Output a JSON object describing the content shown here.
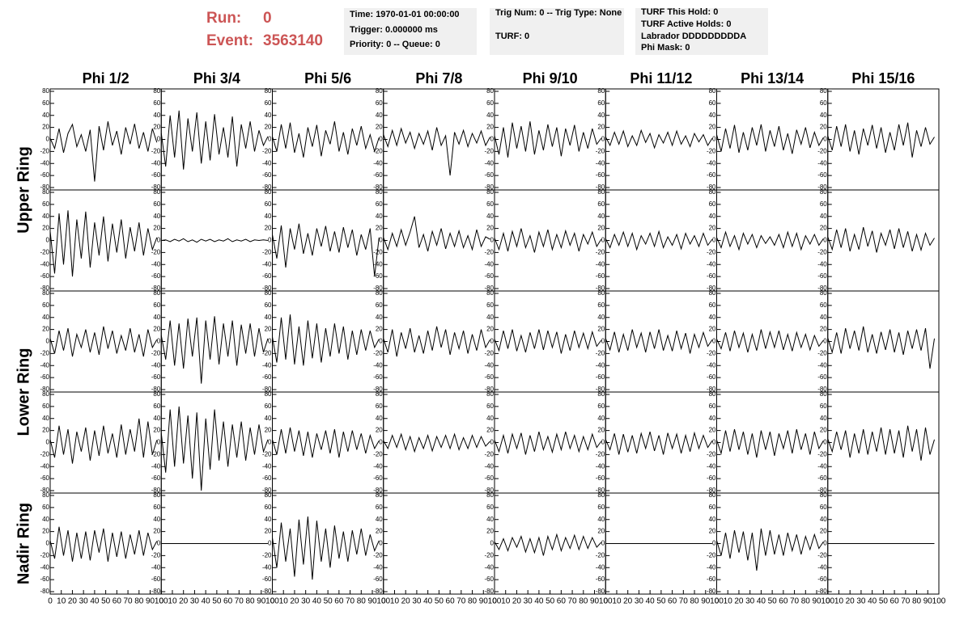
{
  "header": {
    "run_label": "Run:",
    "run": "0",
    "event_label": "Event:",
    "event": "3563140"
  },
  "info_boxes": [
    [
      "Time: 1970-01-01 00:00:00",
      "Trigger: 0.000000 ms",
      "Priority: 0 -- Queue: 0"
    ],
    [
      "Trig Num: 0 -- Trig Type: None",
      "TURF: 0"
    ],
    [
      "TURF This Hold: 0",
      "TURF Active Holds: 0",
      "Labrador DDDDDDDDDA",
      "Phi Mask: 0"
    ]
  ],
  "chart_data": {
    "type": "line",
    "color": "#000000",
    "columns": [
      "Phi 1/2",
      "Phi 3/4",
      "Phi 5/6",
      "Phi 7/8",
      "Phi 9/10",
      "Phi 11/12",
      "Phi 13/14",
      "Phi 15/16"
    ],
    "rows": [
      "Upper Ring",
      "Lower Ring",
      "Nadir Ring"
    ],
    "x": [
      0,
      4,
      8,
      12,
      16,
      20,
      24,
      28,
      32,
      36,
      40,
      44,
      48,
      52,
      56,
      60,
      64,
      68,
      72,
      76,
      80,
      84,
      88,
      92,
      96
    ],
    "xlim": [
      0,
      100
    ],
    "xticks": [
      0,
      10,
      20,
      30,
      40,
      50,
      60,
      70,
      80,
      90,
      100
    ],
    "ylim": [
      -80,
      80
    ],
    "yticks": [
      -80,
      -60,
      -40,
      -20,
      0,
      20,
      40,
      60,
      80
    ],
    "series": [
      {
        "values": [
          2,
          -15,
          18,
          -22,
          10,
          25,
          -12,
          8,
          -20,
          16,
          -70,
          22,
          -18,
          30,
          -10,
          14,
          -25,
          20,
          -8,
          26,
          -15,
          12,
          -20,
          18,
          -5
        ]
      },
      {
        "values": [
          10,
          -45,
          40,
          -30,
          48,
          -50,
          35,
          -20,
          45,
          -40,
          30,
          -35,
          42,
          -25,
          20,
          -30,
          38,
          -45,
          25,
          -15,
          30,
          -20,
          15,
          -10,
          5
        ]
      },
      {
        "values": [
          5,
          -20,
          25,
          -15,
          28,
          -22,
          10,
          -30,
          20,
          -12,
          24,
          -28,
          15,
          -8,
          30,
          -20,
          12,
          -25,
          18,
          -10,
          22,
          -15,
          8,
          -20,
          3
        ]
      },
      {
        "values": [
          8,
          -12,
          15,
          -10,
          18,
          -6,
          12,
          -15,
          10,
          -8,
          14,
          -18,
          20,
          -10,
          6,
          -60,
          12,
          -8,
          15,
          -12,
          10,
          -6,
          14,
          -10,
          4
        ]
      },
      {
        "values": [
          6,
          -25,
          20,
          -30,
          28,
          -15,
          22,
          -20,
          30,
          -25,
          15,
          -18,
          25,
          -12,
          20,
          -28,
          18,
          -10,
          24,
          -20,
          12,
          -15,
          18,
          -8,
          2
        ]
      },
      {
        "values": [
          4,
          -10,
          12,
          -8,
          14,
          -12,
          6,
          -10,
          15,
          -5,
          10,
          -14,
          8,
          -6,
          12,
          -10,
          14,
          -8,
          6,
          -12,
          10,
          -4,
          8,
          -10,
          2
        ]
      },
      {
        "values": [
          8,
          -20,
          18,
          -15,
          24,
          -22,
          12,
          -18,
          20,
          -10,
          25,
          -20,
          15,
          -12,
          22,
          -18,
          10,
          -24,
          16,
          -8,
          20,
          -14,
          12,
          -10,
          3
        ]
      },
      {
        "values": [
          6,
          -18,
          22,
          -12,
          25,
          -20,
          15,
          -25,
          18,
          -10,
          24,
          -15,
          20,
          -22,
          12,
          -18,
          25,
          -10,
          28,
          -30,
          15,
          -12,
          20,
          -8,
          4
        ]
      },
      {
        "values": [
          15,
          -55,
          45,
          -40,
          50,
          -60,
          35,
          -30,
          48,
          -45,
          30,
          -25,
          40,
          -35,
          28,
          -20,
          35,
          -30,
          22,
          -18,
          30,
          -25,
          20,
          -15,
          5
        ]
      },
      {
        "values": [
          0,
          1,
          -2,
          2,
          -1,
          3,
          -2,
          1,
          -3,
          2,
          -1,
          2,
          -2,
          1,
          -1,
          3,
          -2,
          1,
          -1,
          2,
          -2,
          1,
          0,
          1,
          0
        ]
      },
      {
        "values": [
          10,
          -30,
          25,
          -45,
          20,
          -15,
          28,
          -22,
          12,
          -25,
          20,
          -10,
          24,
          -18,
          15,
          -20,
          22,
          -12,
          18,
          -25,
          10,
          -15,
          20,
          -60,
          5
        ]
      },
      {
        "values": [
          5,
          -15,
          12,
          -10,
          18,
          -8,
          14,
          40,
          -12,
          10,
          -18,
          15,
          -8,
          20,
          -14,
          12,
          -10,
          16,
          -12,
          8,
          -15,
          18,
          -10,
          6,
          2
        ]
      },
      {
        "values": [
          4,
          -15,
          12,
          -18,
          15,
          -10,
          20,
          -12,
          8,
          -20,
          14,
          -10,
          18,
          -15,
          10,
          -12,
          16,
          -8,
          12,
          -18,
          10,
          -6,
          14,
          -10,
          2
        ]
      },
      {
        "values": [
          3,
          -12,
          10,
          -8,
          14,
          -10,
          12,
          -15,
          8,
          -6,
          12,
          -10,
          15,
          -12,
          6,
          -8,
          10,
          -14,
          12,
          -6,
          8,
          -10,
          12,
          -8,
          2
        ]
      },
      {
        "values": [
          5,
          -12,
          14,
          -10,
          8,
          -15,
          12,
          -6,
          10,
          -12,
          8,
          -5,
          6,
          -8,
          10,
          -12,
          14,
          -10,
          12,
          -15,
          8,
          -6,
          10,
          -8,
          3
        ]
      },
      {
        "values": [
          6,
          -15,
          18,
          -12,
          20,
          -18,
          10,
          -15,
          22,
          -10,
          16,
          -20,
          12,
          -8,
          18,
          -14,
          20,
          -12,
          15,
          -18,
          10,
          -16,
          12,
          -8,
          4
        ]
      },
      {
        "values": [
          5,
          -20,
          18,
          -15,
          22,
          -25,
          12,
          -10,
          20,
          -18,
          15,
          -22,
          25,
          -12,
          18,
          -20,
          10,
          -15,
          22,
          -18,
          12,
          -25,
          20,
          -10,
          3
        ]
      },
      {
        "values": [
          10,
          -30,
          35,
          -40,
          30,
          -45,
          38,
          -25,
          40,
          -70,
          35,
          -30,
          42,
          -38,
          30,
          -25,
          35,
          -40,
          28,
          -20,
          30,
          -25,
          22,
          -18,
          5
        ]
      },
      {
        "values": [
          8,
          -35,
          40,
          -30,
          45,
          -38,
          25,
          -40,
          35,
          -28,
          30,
          -35,
          22,
          -25,
          30,
          -20,
          25,
          -30,
          18,
          -22,
          20,
          -15,
          18,
          -10,
          4
        ]
      },
      {
        "values": [
          5,
          -18,
          20,
          -25,
          15,
          -12,
          22,
          -18,
          10,
          -20,
          18,
          -15,
          25,
          -10,
          20,
          -22,
          15,
          -12,
          18,
          -20,
          12,
          -15,
          20,
          -10,
          3
        ]
      },
      {
        "values": [
          4,
          -15,
          18,
          -12,
          20,
          -16,
          10,
          -18,
          15,
          -12,
          20,
          -14,
          18,
          -10,
          16,
          -20,
          12,
          -15,
          18,
          -10,
          14,
          -12,
          16,
          -8,
          2
        ]
      },
      {
        "values": [
          5,
          -14,
          16,
          -18,
          12,
          -15,
          20,
          -10,
          14,
          -18,
          16,
          -12,
          20,
          -15,
          10,
          -16,
          18,
          -12,
          14,
          -20,
          12,
          -10,
          15,
          -8,
          3
        ]
      },
      {
        "values": [
          4,
          -12,
          15,
          -16,
          18,
          -10,
          14,
          -18,
          12,
          -15,
          20,
          -12,
          16,
          -10,
          18,
          -14,
          12,
          -16,
          15,
          -10,
          12,
          -14,
          10,
          -8,
          2
        ]
      },
      {
        "values": [
          6,
          -18,
          15,
          -20,
          22,
          -12,
          18,
          -15,
          25,
          -18,
          12,
          -20,
          16,
          -14,
          20,
          -18,
          15,
          -22,
          18,
          -12,
          20,
          -15,
          22,
          -45,
          5
        ]
      },
      {
        "values": [
          5,
          -25,
          28,
          -20,
          22,
          -35,
          18,
          -15,
          25,
          -30,
          20,
          -22,
          28,
          -18,
          15,
          -25,
          30,
          -20,
          22,
          -15,
          40,
          -25,
          35,
          -20,
          4
        ]
      },
      {
        "values": [
          15,
          -50,
          55,
          -40,
          60,
          -35,
          45,
          -60,
          50,
          -80,
          40,
          -45,
          55,
          -30,
          35,
          -40,
          30,
          -25,
          35,
          -30,
          25,
          -20,
          30,
          -15,
          5
        ]
      },
      {
        "values": [
          5,
          -20,
          22,
          -18,
          25,
          -15,
          20,
          -22,
          18,
          -25,
          15,
          -12,
          20,
          -18,
          22,
          -25,
          18,
          -15,
          20,
          -12,
          15,
          -18,
          12,
          -10,
          3
        ]
      },
      {
        "values": [
          3,
          -10,
          12,
          -8,
          14,
          -12,
          10,
          -15,
          8,
          -10,
          12,
          -14,
          10,
          -8,
          12,
          -10,
          14,
          -12,
          8,
          -10,
          12,
          -8,
          10,
          -6,
          2
        ]
      },
      {
        "values": [
          4,
          -15,
          12,
          -18,
          14,
          -10,
          16,
          -20,
          12,
          -15,
          18,
          -12,
          10,
          -16,
          14,
          -12,
          18,
          -10,
          12,
          -15,
          10,
          -12,
          14,
          -8,
          2
        ]
      },
      {
        "values": [
          5,
          -12,
          15,
          -20,
          14,
          -16,
          12,
          -18,
          15,
          -10,
          18,
          -14,
          12,
          -20,
          16,
          -10,
          14,
          -18,
          12,
          -15,
          16,
          -10,
          12,
          -8,
          3
        ]
      },
      {
        "values": [
          4,
          -18,
          20,
          -15,
          22,
          -12,
          18,
          -20,
          15,
          -25,
          20,
          -12,
          18,
          -22,
          15,
          -10,
          20,
          -18,
          22,
          -12,
          15,
          -20,
          18,
          -10,
          3
        ]
      },
      {
        "values": [
          6,
          -15,
          18,
          -12,
          20,
          -25,
          15,
          -18,
          22,
          -20,
          18,
          -15,
          25,
          -20,
          22,
          -18,
          20,
          -25,
          28,
          -15,
          22,
          -30,
          25,
          -20,
          5
        ]
      },
      {
        "values": [
          5,
          -25,
          28,
          -20,
          22,
          -30,
          18,
          -25,
          20,
          -28,
          22,
          -15,
          25,
          -30,
          18,
          -22,
          20,
          -25,
          15,
          -18,
          22,
          -20,
          18,
          -10,
          4
        ]
      },
      {
        "values": [
          0,
          0,
          0,
          0,
          0,
          0,
          0,
          0,
          0,
          0,
          0,
          0,
          0,
          0,
          0,
          0,
          0,
          0,
          0,
          0,
          0,
          0,
          0,
          0,
          0
        ]
      },
      {
        "values": [
          10,
          -40,
          35,
          -30,
          25,
          -55,
          40,
          -35,
          45,
          -60,
          38,
          -30,
          25,
          -40,
          30,
          -25,
          20,
          -30,
          22,
          -18,
          25,
          -20,
          15,
          -12,
          5
        ]
      },
      {
        "values": [
          null,
          null,
          null,
          null,
          null,
          null,
          null,
          null,
          null,
          null,
          null,
          null,
          null,
          null,
          null,
          null,
          null,
          null,
          null,
          null,
          null,
          null,
          null,
          null,
          null
        ]
      },
      {
        "values": [
          3,
          -10,
          8,
          -12,
          10,
          -6,
          12,
          -14,
          8,
          -15,
          10,
          -20,
          12,
          -10,
          15,
          -12,
          10,
          -8,
          14,
          -10,
          12,
          -8,
          10,
          -6,
          2
        ]
      },
      {
        "values": [
          0,
          0,
          0,
          0,
          0,
          0,
          0,
          0,
          0,
          0,
          0,
          0,
          0,
          0,
          0,
          0,
          0,
          0,
          0,
          0,
          0,
          0,
          0,
          0,
          0
        ]
      },
      {
        "values": [
          5,
          -20,
          18,
          -25,
          22,
          -15,
          20,
          -28,
          18,
          -45,
          25,
          -20,
          22,
          -18,
          15,
          -20,
          18,
          -12,
          15,
          -18,
          12,
          -10,
          15,
          -8,
          3
        ]
      },
      {
        "values": [
          0,
          0,
          0,
          0,
          0,
          0,
          0,
          0,
          0,
          0,
          0,
          0,
          0,
          0,
          0,
          0,
          0,
          0,
          0,
          0,
          0,
          0,
          0,
          0,
          0
        ]
      }
    ]
  }
}
